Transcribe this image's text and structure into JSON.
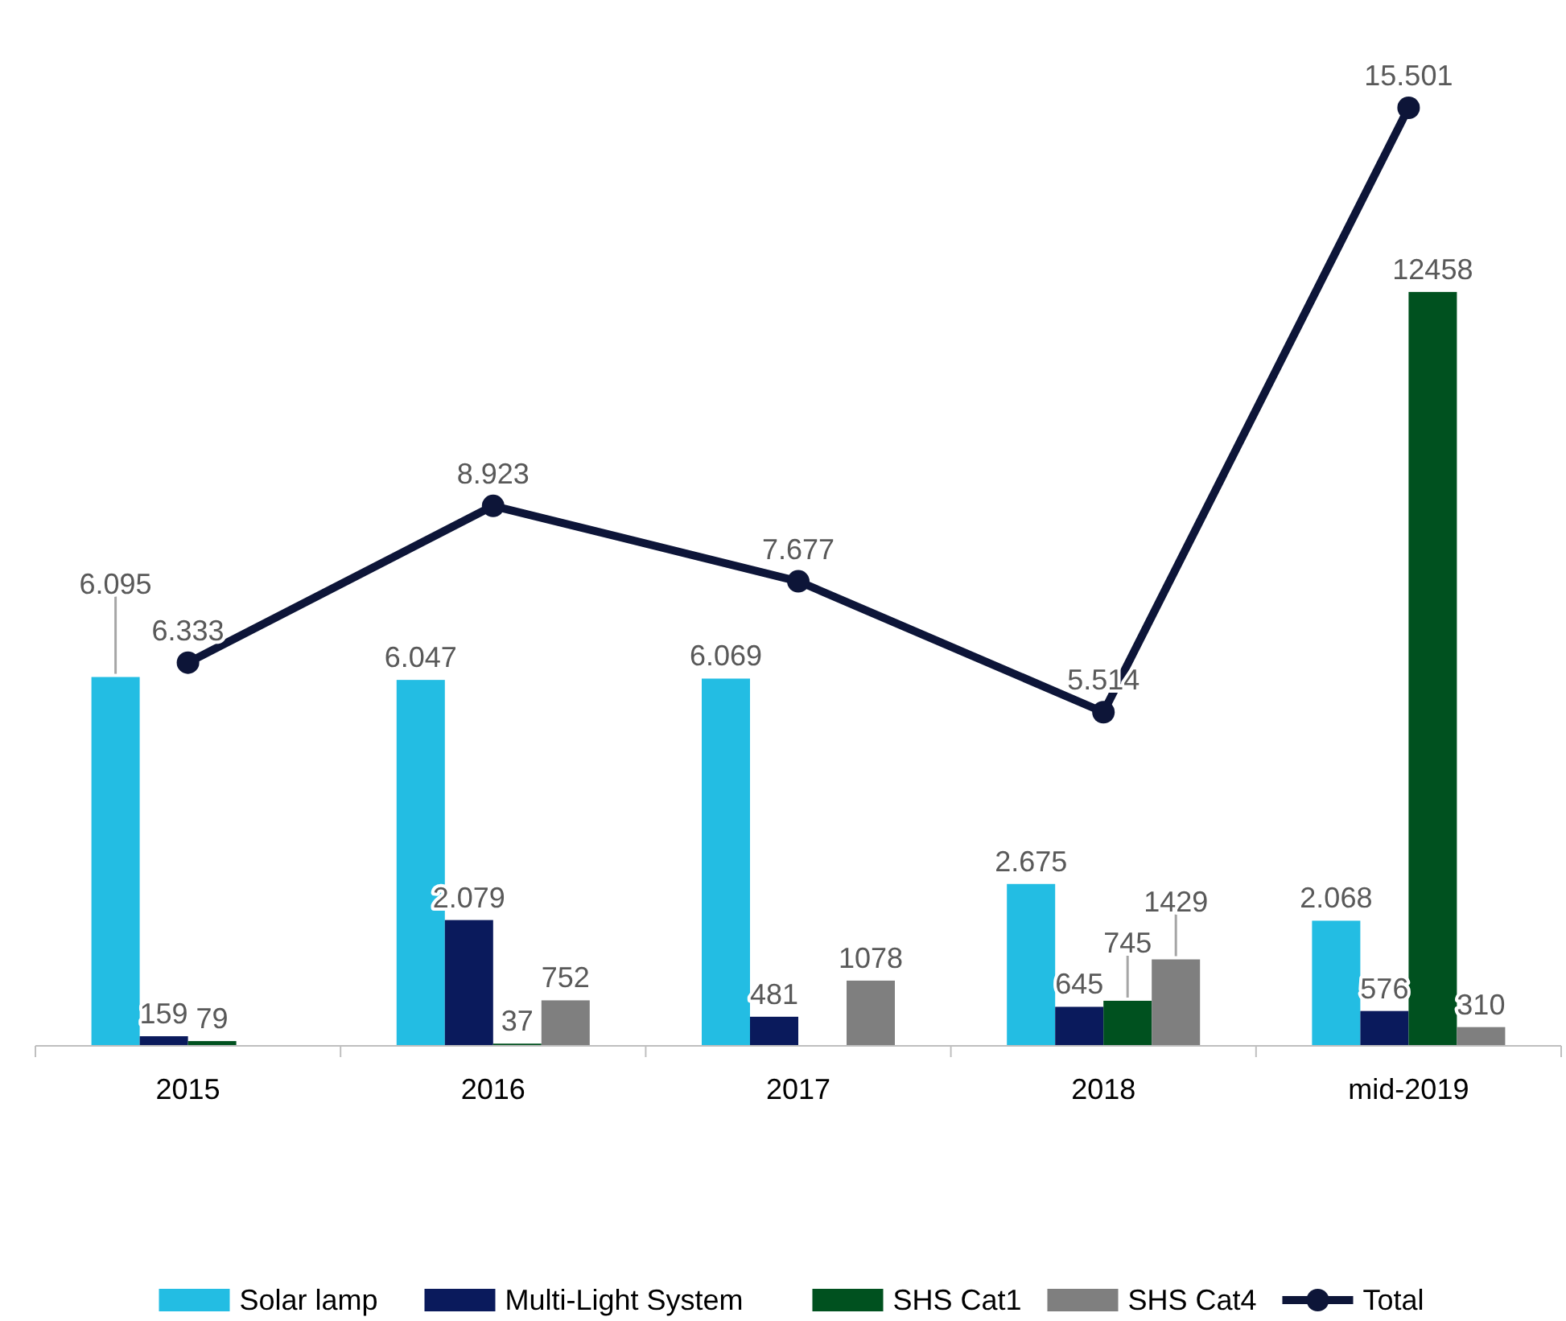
{
  "chart_data": {
    "type": "bar",
    "categories": [
      "2015",
      "2016",
      "2017",
      "2018",
      "mid-2019"
    ],
    "legend": "bottom",
    "marker": "circle",
    "series": [
      {
        "name": "Solar lamp",
        "color": "#23bde3",
        "values": [
          6095,
          6047,
          6069,
          2675,
          2068
        ],
        "value_labels": [
          "6.095",
          "6.047",
          "6.069",
          "2.675",
          "2.068"
        ]
      },
      {
        "name": "Multi-Light System",
        "color": "#0a1a5c",
        "values": [
          159,
          2079,
          481,
          645,
          576
        ],
        "value_labels": [
          "159",
          "2.079",
          "481",
          "645",
          "576"
        ]
      },
      {
        "name": "SHS Cat1",
        "color": "#00511f",
        "values": [
          79,
          37,
          null,
          745,
          12458
        ],
        "value_labels": [
          "79",
          "37",
          null,
          "745",
          "12458"
        ]
      },
      {
        "name": "SHS Cat4",
        "color": "#7f7f7f",
        "values": [
          null,
          752,
          1078,
          1429,
          310
        ],
        "value_labels": [
          null,
          "752",
          "1078",
          "1429",
          "310"
        ]
      },
      {
        "name": "Total",
        "type": "line",
        "color": "#0d1538",
        "values": [
          6333,
          8923,
          7677,
          5514,
          15501
        ],
        "value_labels": [
          "6.333",
          "8.923",
          "7.677",
          "5.514",
          "15.501"
        ]
      }
    ]
  }
}
